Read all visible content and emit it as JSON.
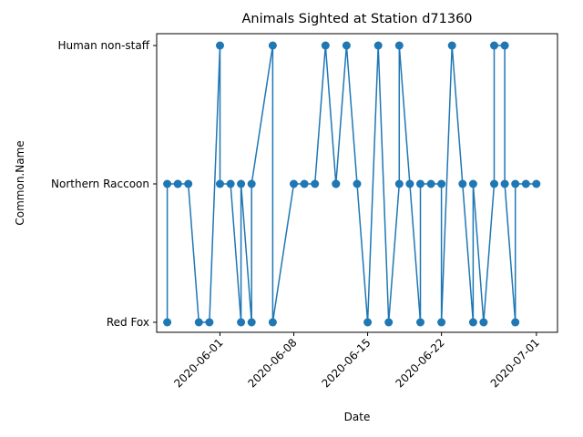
{
  "chart_data": {
    "type": "line",
    "title": "Animals Sighted at Station d71360",
    "xlabel": "Date",
    "ylabel": "Common.Name",
    "categories_y": [
      "Red Fox",
      "Northern Raccoon",
      "Human non-staff"
    ],
    "x_ticks": [
      "2020-06-01",
      "2020-06-08",
      "2020-06-15",
      "2020-06-22",
      "2020-07-01"
    ],
    "xlim": [
      "2020-05-26",
      "2020-07-03"
    ],
    "grid": false,
    "color": "#1f77b4",
    "series": [
      {
        "x": [
          "2020-05-27",
          "2020-05-27",
          "2020-05-28",
          "2020-05-28",
          "2020-05-29",
          "2020-05-30",
          "2020-05-31",
          "2020-06-01",
          "2020-06-01",
          "2020-06-02",
          "2020-06-03",
          "2020-06-03",
          "2020-06-04",
          "2020-06-04",
          "2020-06-06",
          "2020-06-06",
          "2020-06-08",
          "2020-06-09",
          "2020-06-10",
          "2020-06-11",
          "2020-06-12",
          "2020-06-12",
          "2020-06-13",
          "2020-06-14",
          "2020-06-15",
          "2020-06-16",
          "2020-06-17",
          "2020-06-18",
          "2020-06-18",
          "2020-06-19",
          "2020-06-20",
          "2020-06-20",
          "2020-06-21",
          "2020-06-22",
          "2020-06-22",
          "2020-06-23",
          "2020-06-24",
          "2020-06-25",
          "2020-06-25",
          "2020-06-26",
          "2020-06-27",
          "2020-06-27",
          "2020-06-28",
          "2020-06-28",
          "2020-06-29",
          "2020-06-29",
          "2020-06-30",
          "2020-07-01"
        ],
        "y": [
          "Red Fox",
          "Northern Raccoon",
          "Northern Raccoon",
          "Northern Raccoon",
          "Northern Raccoon",
          "Red Fox",
          "Red Fox",
          "Human non-staff",
          "Northern Raccoon",
          "Northern Raccoon",
          "Red Fox",
          "Northern Raccoon",
          "Red Fox",
          "Northern Raccoon",
          "Human non-staff",
          "Red Fox",
          "Northern Raccoon",
          "Northern Raccoon",
          "Northern Raccoon",
          "Human non-staff",
          "Northern Raccoon",
          "Northern Raccoon",
          "Human non-staff",
          "Northern Raccoon",
          "Red Fox",
          "Human non-staff",
          "Red Fox",
          "Northern Raccoon",
          "Human non-staff",
          "Northern Raccoon",
          "Red Fox",
          "Northern Raccoon",
          "Northern Raccoon",
          "Northern Raccoon",
          "Red Fox",
          "Human non-staff",
          "Northern Raccoon",
          "Red Fox",
          "Northern Raccoon",
          "Red Fox",
          "Northern Raccoon",
          "Human non-staff",
          "Human non-staff",
          "Northern Raccoon",
          "Red Fox",
          "Northern Raccoon",
          "Northern Raccoon",
          "Northern Raccoon"
        ]
      }
    ]
  }
}
